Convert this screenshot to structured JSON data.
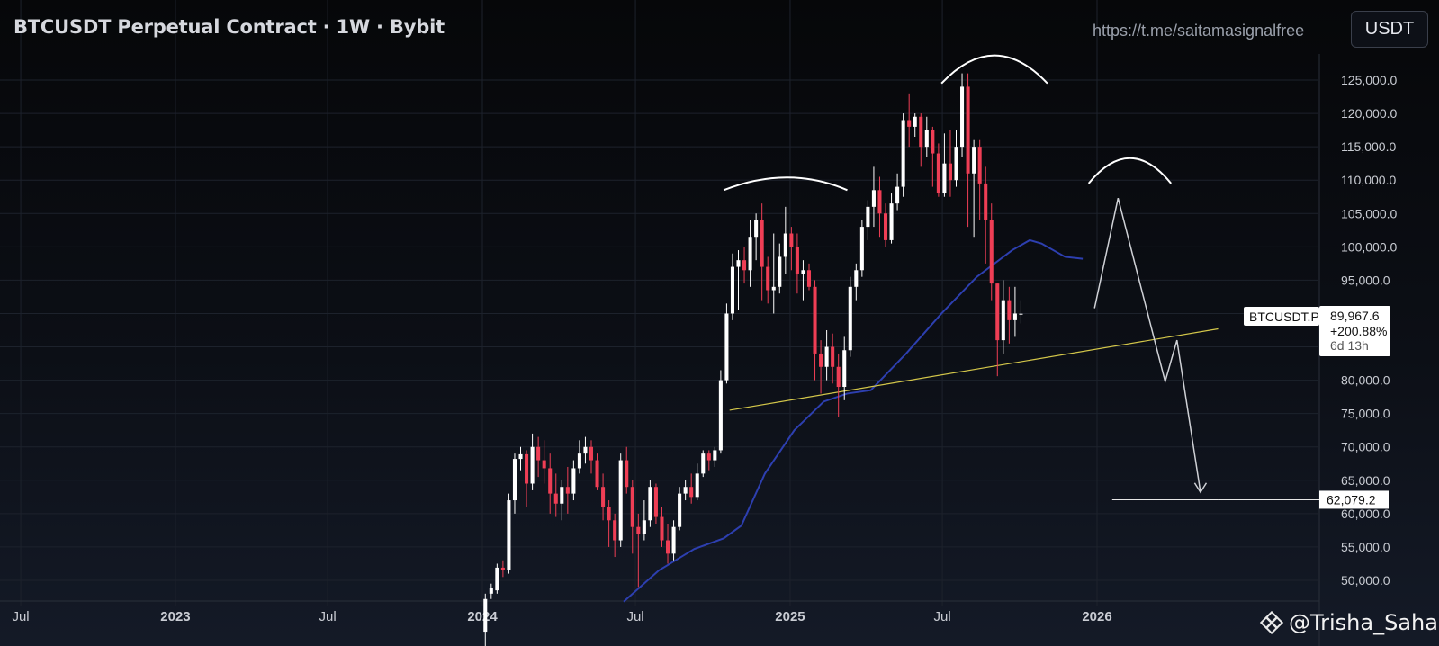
{
  "header": {
    "title": "BTCUSDT Perpetual Contract · 1W · Bybit",
    "link": "https://t.me/saitamasignalfree",
    "currency_button": "USDT"
  },
  "watermark": {
    "text": "@Trisha_Saha",
    "icon": "binance-square-icon"
  },
  "price_label": {
    "symbol": "BTCUSDT.P",
    "price": "89,967.6",
    "change": "+200.88%",
    "countdown": "6d 13h"
  },
  "target_label": "62,079.2",
  "colors": {
    "up": "#ffffff",
    "down": "#ef3e55",
    "ma": "#2d3fb0",
    "trendline": "#d4c74a",
    "projection": "#cfd1d6",
    "arcs": "#ffffff",
    "axis_text": "#c9ccd3"
  },
  "chart_data": {
    "type": "candlestick",
    "ylim": [
      47000,
      130000
    ],
    "y_ticks": [
      "50,000.0",
      "55,000.0",
      "60,000.0",
      "65,000.0",
      "70,000.0",
      "75,000.0",
      "80,000.0",
      "85,000.0",
      "90,000.0",
      "95,000.0",
      "100,000.0",
      "105,000.0",
      "110,000.0",
      "115,000.0",
      "120,000.0",
      "125,000.0"
    ],
    "y_tick_values": [
      50000,
      55000,
      60000,
      65000,
      70000,
      75000,
      80000,
      85000,
      90000,
      95000,
      100000,
      105000,
      110000,
      115000,
      120000,
      125000
    ],
    "x_labels": [
      {
        "label": "Jul",
        "date": "2022-07-01",
        "bold": false
      },
      {
        "label": "2023",
        "date": "2023-01-01",
        "bold": true
      },
      {
        "label": "Jul",
        "date": "2023-07-01",
        "bold": false
      },
      {
        "label": "2024",
        "date": "2024-01-01",
        "bold": true
      },
      {
        "label": "Jul",
        "date": "2024-07-01",
        "bold": false
      },
      {
        "label": "2025",
        "date": "2025-01-01",
        "bold": true
      },
      {
        "label": "Jul",
        "date": "2025-07-01",
        "bold": false
      },
      {
        "label": "2026",
        "date": "2026-01-01",
        "bold": true
      }
    ],
    "candles_start": "2024-01-01",
    "candles": [
      [
        42300,
        47200,
        40000,
        48000
      ],
      [
        48000,
        48800,
        47200,
        49500
      ],
      [
        48500,
        51900,
        48000,
        52500
      ],
      [
        51900,
        51600,
        50500,
        53000
      ],
      [
        51600,
        62000,
        51000,
        63000
      ],
      [
        62000,
        68200,
        60000,
        69000
      ],
      [
        68200,
        68900,
        66500,
        70000
      ],
      [
        68900,
        64500,
        61000,
        69500
      ],
      [
        64500,
        70000,
        63500,
        72000
      ],
      [
        70000,
        68000,
        65500,
        71500
      ],
      [
        68000,
        66800,
        64500,
        71000
      ],
      [
        66800,
        63000,
        60000,
        69000
      ],
      [
        63000,
        61500,
        59500,
        66000
      ],
      [
        61500,
        64000,
        59000,
        65000
      ],
      [
        64000,
        63000,
        60000,
        67000
      ],
      [
        63000,
        66800,
        62000,
        68000
      ],
      [
        66800,
        69000,
        66000,
        71000
      ],
      [
        69000,
        70000,
        67500,
        71500
      ],
      [
        70000,
        68000,
        66000,
        71000
      ],
      [
        68000,
        64000,
        63500,
        69000
      ],
      [
        64000,
        61000,
        59000,
        66000
      ],
      [
        61000,
        59000,
        55000,
        62000
      ],
      [
        59000,
        56000,
        53500,
        60000
      ],
      [
        56000,
        68000,
        55000,
        69000
      ],
      [
        68000,
        64000,
        63000,
        70000
      ],
      [
        64000,
        58000,
        54000,
        65000
      ],
      [
        58000,
        57000,
        49000,
        60000
      ],
      [
        57000,
        59000,
        56000,
        62000
      ],
      [
        59000,
        64000,
        58000,
        65000
      ],
      [
        64000,
        59500,
        58500,
        64500
      ],
      [
        59500,
        56000,
        55000,
        61000
      ],
      [
        56000,
        54000,
        52500,
        58500
      ],
      [
        54000,
        58000,
        53000,
        59000
      ],
      [
        58000,
        63000,
        57500,
        64000
      ],
      [
        63000,
        64000,
        62000,
        65000
      ],
      [
        64000,
        62500,
        61500,
        66000
      ],
      [
        62500,
        66000,
        62000,
        67500
      ],
      [
        66000,
        69000,
        65500,
        69500
      ],
      [
        69000,
        68000,
        66500,
        69500
      ],
      [
        68000,
        69500,
        67000,
        70000
      ],
      [
        69500,
        80000,
        69000,
        81500
      ],
      [
        80000,
        90000,
        79500,
        91500
      ],
      [
        90000,
        97000,
        89000,
        99000
      ],
      [
        97000,
        98000,
        90500,
        99500
      ],
      [
        98000,
        96500,
        94500,
        100000
      ],
      [
        96500,
        101500,
        94000,
        104000
      ],
      [
        101500,
        104000,
        98000,
        105000
      ],
      [
        104000,
        97000,
        92000,
        106500
      ],
      [
        97000,
        93500,
        91500,
        98500
      ],
      [
        93500,
        94000,
        90000,
        102000
      ],
      [
        94000,
        98500,
        93000,
        100500
      ],
      [
        98500,
        102000,
        96000,
        106000
      ],
      [
        102000,
        100000,
        96500,
        103000
      ],
      [
        100000,
        96000,
        93000,
        102000
      ],
      [
        96000,
        96500,
        92000,
        98000
      ],
      [
        96500,
        94000,
        93500,
        97500
      ],
      [
        94000,
        84000,
        80000,
        95000
      ],
      [
        84000,
        82000,
        78000,
        86000
      ],
      [
        82000,
        85000,
        80000,
        87500
      ],
      [
        85000,
        82000,
        79500,
        87000
      ],
      [
        82000,
        79000,
        74500,
        84000
      ],
      [
        79000,
        84500,
        77000,
        86500
      ],
      [
        84500,
        94000,
        83500,
        95500
      ],
      [
        94000,
        96500,
        92000,
        97500
      ],
      [
        96500,
        103000,
        95500,
        104000
      ],
      [
        103000,
        106000,
        101000,
        107000
      ],
      [
        106000,
        108500,
        103000,
        112000
      ],
      [
        108500,
        105000,
        101500,
        110500
      ],
      [
        105000,
        101000,
        100000,
        106500
      ],
      [
        101000,
        106500,
        100500,
        108000
      ],
      [
        106500,
        109000,
        105500,
        111000
      ],
      [
        109000,
        119000,
        107500,
        120000
      ],
      [
        119000,
        118000,
        115000,
        123000
      ],
      [
        118000,
        119500,
        116500,
        120000
      ],
      [
        119500,
        115000,
        112000,
        120000
      ],
      [
        115000,
        117500,
        113500,
        119500
      ],
      [
        117500,
        114000,
        109000,
        118000
      ],
      [
        114000,
        108000,
        107500,
        115500
      ],
      [
        108000,
        112500,
        107500,
        117000
      ],
      [
        112500,
        110000,
        107500,
        117500
      ],
      [
        110000,
        115000,
        109000,
        117500
      ],
      [
        115000,
        124000,
        113500,
        126000
      ],
      [
        124000,
        111000,
        103000,
        126000
      ],
      [
        111000,
        115000,
        101500,
        116000
      ],
      [
        115000,
        109500,
        104000,
        116000
      ],
      [
        109500,
        104000,
        97500,
        112000
      ],
      [
        104000,
        94500,
        92000,
        106500
      ],
      [
        94500,
        86000,
        80600,
        94500
      ],
      [
        86000,
        92000,
        84000,
        95000
      ],
      [
        92000,
        89000,
        85500,
        94000
      ],
      [
        89000,
        90000,
        86500,
        94000
      ],
      [
        89967.6,
        89967.6,
        88500,
        92000
      ]
    ],
    "moving_average": [
      [
        "2024-06-17",
        46800
      ],
      [
        "2024-07-29",
        51500
      ],
      [
        "2024-09-09",
        54700
      ],
      [
        "2024-10-14",
        56300
      ],
      [
        "2024-11-04",
        58200
      ],
      [
        "2024-12-02",
        66000
      ],
      [
        "2025-01-06",
        72500
      ],
      [
        "2025-02-10",
        76800
      ],
      [
        "2025-03-10",
        78000
      ],
      [
        "2025-04-07",
        78500
      ],
      [
        "2025-05-19",
        84000
      ],
      [
        "2025-06-30",
        90000
      ],
      [
        "2025-08-11",
        95500
      ],
      [
        "2025-09-22",
        99500
      ],
      [
        "2025-10-13",
        101000
      ],
      [
        "2025-10-27",
        100500
      ],
      [
        "2025-11-24",
        98500
      ],
      [
        "2025-12-15",
        98200
      ]
    ],
    "trendline": [
      [
        "2024-10-21",
        75500
      ],
      [
        "2026-05-25",
        87700
      ]
    ],
    "target_line": {
      "from": "2026-01-19",
      "to": "2026-05-25",
      "value": 62079.2
    },
    "projection": [
      [
        "2025-12-29",
        90800
      ],
      [
        "2026-01-26",
        107300
      ],
      [
        "2026-03-23",
        79800
      ],
      [
        "2026-04-06",
        86000
      ],
      [
        "2026-05-04",
        63200
      ]
    ],
    "projection_arrowhead": [
      [
        "2026-04-27",
        64600
      ],
      [
        "2026-05-04",
        63200
      ],
      [
        "2026-05-11",
        64600
      ]
    ],
    "arcs": [
      {
        "from": "2024-10-14",
        "peak": "2024-12-30",
        "to": "2025-03-10",
        "base": 108500,
        "top": 110400
      },
      {
        "from": "2025-06-30",
        "peak": "2025-09-01",
        "to": "2025-11-03",
        "base": 124500,
        "top": 128700
      },
      {
        "from": "2025-12-22",
        "peak": "2026-02-09",
        "to": "2026-03-30",
        "base": 109500,
        "top": 113300
      }
    ]
  }
}
